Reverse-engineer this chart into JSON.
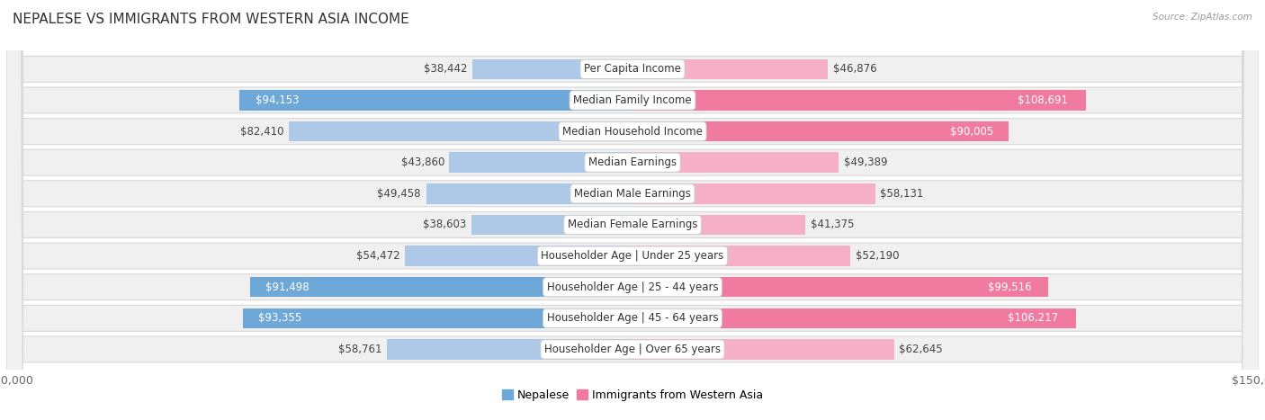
{
  "title": "NEPALESE VS IMMIGRANTS FROM WESTERN ASIA INCOME",
  "source": "Source: ZipAtlas.com",
  "categories": [
    "Per Capita Income",
    "Median Family Income",
    "Median Household Income",
    "Median Earnings",
    "Median Male Earnings",
    "Median Female Earnings",
    "Householder Age | Under 25 years",
    "Householder Age | 25 - 44 years",
    "Householder Age | 45 - 64 years",
    "Householder Age | Over 65 years"
  ],
  "nepalese_values": [
    38442,
    94153,
    82410,
    43860,
    49458,
    38603,
    54472,
    91498,
    93355,
    58761
  ],
  "western_asia_values": [
    46876,
    108691,
    90005,
    49389,
    58131,
    41375,
    52190,
    99516,
    106217,
    62645
  ],
  "nepalese_labels": [
    "$38,442",
    "$94,153",
    "$82,410",
    "$43,860",
    "$49,458",
    "$38,603",
    "$54,472",
    "$91,498",
    "$93,355",
    "$58,761"
  ],
  "western_asia_labels": [
    "$46,876",
    "$108,691",
    "$90,005",
    "$49,389",
    "$58,131",
    "$41,375",
    "$52,190",
    "$99,516",
    "$106,217",
    "$62,645"
  ],
  "nepalese_label_inside": [
    false,
    true,
    false,
    false,
    false,
    false,
    false,
    true,
    true,
    false
  ],
  "western_asia_label_inside": [
    false,
    true,
    true,
    false,
    false,
    false,
    false,
    true,
    true,
    false
  ],
  "nepalese_color": "#6ea8d8",
  "western_asia_color": "#f07aa0",
  "nepalese_color_light": "#aec8e8",
  "western_asia_color_light": "#f5b0c8",
  "max_value": 150000,
  "row_bg_color": "#f0f0f0",
  "row_border_color": "#d8d8d8",
  "title_fontsize": 11,
  "tick_fontsize": 9,
  "bar_label_fontsize": 8.5,
  "category_fontsize": 8.5,
  "legend_nepalese": "Nepalese",
  "legend_western_asia": "Immigrants from Western Asia"
}
